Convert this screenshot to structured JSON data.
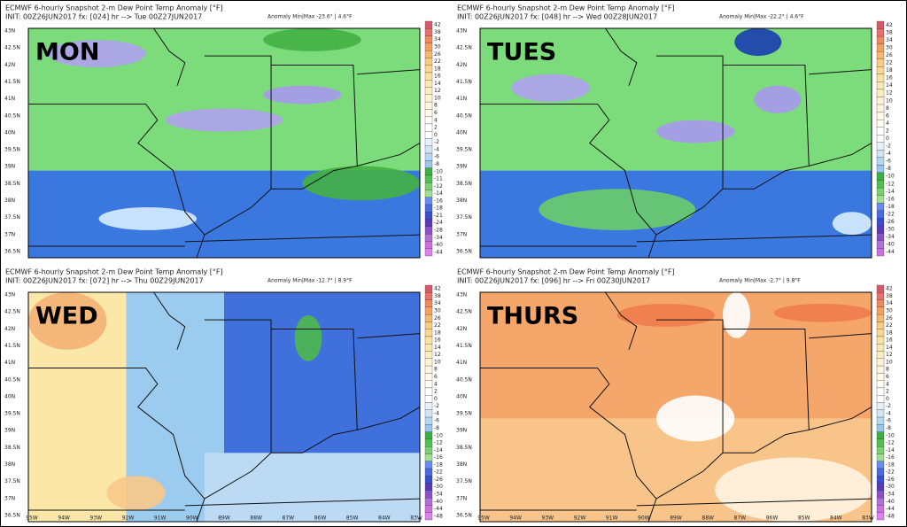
{
  "panels": [
    {
      "title": "ECMWF 6-hourly Snapshot 2-m Dew Point Temp Anomaly [°F]",
      "init": "INIT: 00Z26JUN2017 fx: [024] hr --> Tue 00Z27JUN2017",
      "anomaly": "Anomaly Min|Max -23.6° | 4.6°F",
      "day": "MON",
      "colorbar": [
        "42",
        "38",
        "34",
        "30",
        "26",
        "22",
        "18",
        "16",
        "14",
        "12",
        "10",
        "8",
        "6",
        "4",
        "2",
        "0",
        "-2",
        "-4",
        "-6",
        "-8",
        "-10",
        "-11",
        "-12",
        "-14",
        "-16",
        "-18",
        "-21",
        "-24",
        "-28",
        "-34",
        "-40",
        "-44"
      ]
    },
    {
      "title": "ECMWF 6-hourly Snapshot 2-m Dew Point Temp Anomaly [°F]",
      "init": "INIT: 00Z26JUN2017 fx: [048] hr --> Wed 00Z28JUN2017",
      "anomaly": "Anomaly Min|Max -22.2° | 4.6°F",
      "day": "TUES",
      "colorbar": [
        "42",
        "38",
        "34",
        "30",
        "26",
        "22",
        "18",
        "16",
        "14",
        "12",
        "10",
        "8",
        "6",
        "4",
        "2",
        "0",
        "-2",
        "-4",
        "-6",
        "-8",
        "-10",
        "-12",
        "-14",
        "-16",
        "-18",
        "-22",
        "-26",
        "-30",
        "-34",
        "-40",
        "-44"
      ]
    },
    {
      "title": "ECMWF 6-hourly Snapshot 2-m Dew Point Temp Anomaly [°F]",
      "init": "INIT: 00Z26JUN2017 fx: [072] hr --> Thu 00Z29JUN2017",
      "anomaly": "Anomaly Min|Max -12.7° | 8.9°F",
      "day": "WED",
      "colorbar": [
        "42",
        "38",
        "34",
        "30",
        "26",
        "22",
        "18",
        "16",
        "14",
        "12",
        "10",
        "8",
        "6",
        "4",
        "2",
        "0",
        "-2",
        "-4",
        "-6",
        "-8",
        "-10",
        "-12",
        "-14",
        "-16",
        "-18",
        "-22",
        "-26",
        "-30",
        "-34",
        "-40",
        "-44",
        "-48"
      ]
    },
    {
      "title": "ECMWF 6-hourly Snapshot 2-m Dew Point Temp Anomaly [°F]",
      "init": "INIT: 00Z26JUN2017 fx: [096] hr --> Fri 00Z30JUN2017",
      "anomaly": "Anomaly Min|Max -2.7° | 9.8°F",
      "day": "THURS",
      "colorbar": [
        "42",
        "38",
        "34",
        "30",
        "26",
        "22",
        "18",
        "16",
        "14",
        "12",
        "10",
        "8",
        "6",
        "4",
        "2",
        "0",
        "-2",
        "-4",
        "-6",
        "-8",
        "-10",
        "-12",
        "-14",
        "-16",
        "-18",
        "-22",
        "-26",
        "-30",
        "-34",
        "-40",
        "-44",
        "-48"
      ]
    }
  ],
  "lat_labels": [
    "43N",
    "42.5N",
    "42N",
    "41.5N",
    "41N",
    "40.5N",
    "40N",
    "39.5N",
    "39N",
    "38.5N",
    "38N",
    "37.5N",
    "37N",
    "36.5N"
  ],
  "lon_labels": [
    "95W",
    "94W",
    "93W",
    "92W",
    "91W",
    "90W",
    "89W",
    "88W",
    "87W",
    "86W",
    "85W",
    "84W",
    "83W"
  ]
}
